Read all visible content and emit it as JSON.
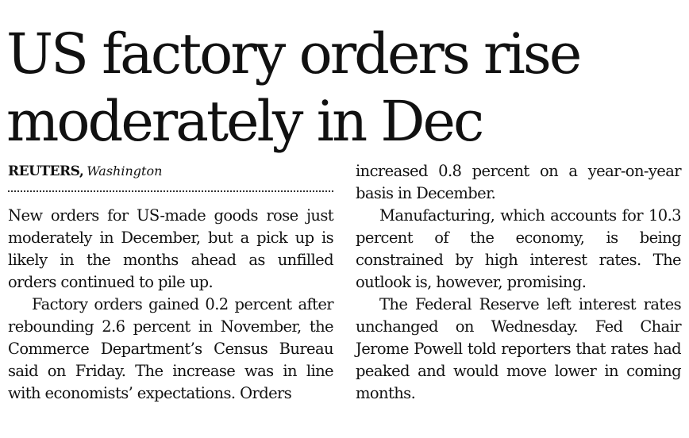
{
  "headline": {
    "line1": "US factory orders rise",
    "line2": "moderately in Dec"
  },
  "byline": {
    "agency": "REUTERS,",
    "place": "Washington"
  },
  "column1": [
    "New orders for US-made goods rose just moderately in December, but a pick up is likely in the months ahead as unfilled orders continued to pile up.",
    "Factory orders gained 0.2 percent after rebounding 2.6 percent in November, the Commerce Department’s Census Bureau said on Friday. The increase was in line with economists’ expectations. Orders"
  ],
  "column2": [
    "increased 0.8 percent on a year-on-year basis in December.",
    "Manufacturing, which accounts for 10.3 percent of the economy, is being constrained by high interest rates. The outlook is, however, promising.",
    "The Federal Reserve left interest rates unchanged on Wednesday. Fed Chair Jerome Powell told reporters that rates had peaked and would move lower in coming months."
  ]
}
